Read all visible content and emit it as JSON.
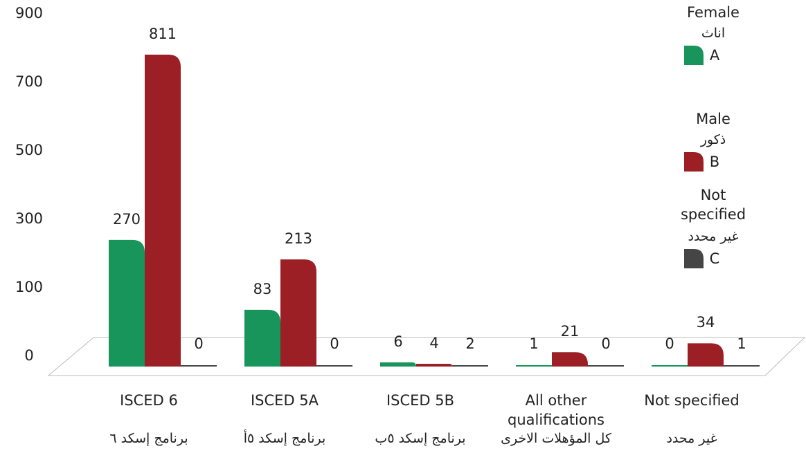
{
  "chart_data": {
    "type": "bar",
    "categories": [
      "ISCED 6",
      "ISCED 5A",
      "ISCED 5B",
      "All other qualifications",
      "Not specified"
    ],
    "categories_ar": [
      "برنامج إسكد ٦",
      "برنامج إسكد ٥أ",
      "برنامج إسكد ٥ب",
      "كل المؤهلات الاخرى",
      "غير محدد"
    ],
    "series": [
      {
        "name": "Female",
        "name_ar": "اناث",
        "label": "A",
        "color": "#17955a",
        "values": [
          270,
          83,
          6,
          1,
          0
        ]
      },
      {
        "name": "Male",
        "name_ar": "ذكور",
        "label": "B",
        "color": "#9b1f24",
        "values": [
          811,
          213,
          4,
          21,
          34
        ]
      },
      {
        "name": "Not specified",
        "name_ar": "غير محدد",
        "label": "C",
        "color": "#454545",
        "values": [
          0,
          0,
          2,
          0,
          1
        ]
      }
    ],
    "ylim": [
      0,
      900
    ],
    "yticks": [
      0,
      100,
      300,
      500,
      700,
      900
    ]
  }
}
